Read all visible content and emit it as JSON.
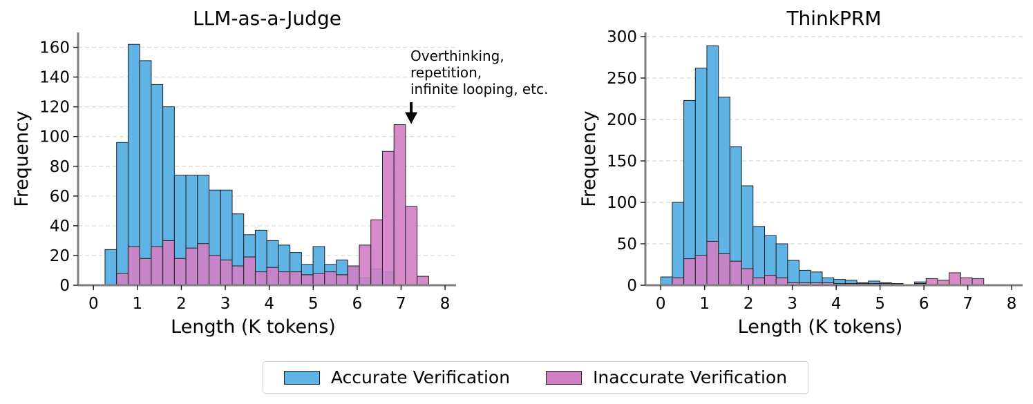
{
  "colors": {
    "accurate": "#5fb4e5",
    "inaccurate": "#d17fc4"
  },
  "legend": {
    "accurate_label": "Accurate Verification",
    "inaccurate_label": "Inaccurate Verification"
  },
  "chart_data": [
    {
      "type": "histogram",
      "title": "LLM-as-a-Judge",
      "xlabel": "Length (K tokens)",
      "ylabel": "Frequency",
      "xlim": [
        -0.35,
        8.25
      ],
      "ylim": [
        0,
        170
      ],
      "xticks": [
        0,
        1,
        2,
        3,
        4,
        5,
        6,
        7,
        8
      ],
      "yticks": [
        0,
        20,
        40,
        60,
        80,
        100,
        120,
        140,
        160
      ],
      "bin_width": 0.263,
      "bin_starts": [
        0.263,
        0.526,
        0.789,
        1.052,
        1.315,
        1.578,
        1.841,
        2.104,
        2.367,
        2.63,
        2.893,
        3.156,
        3.419,
        3.682,
        3.945,
        4.208,
        4.471,
        4.734,
        4.997,
        5.26,
        5.523,
        5.786,
        6.049,
        6.312,
        6.575,
        6.838,
        7.101,
        7.364,
        7.627
      ],
      "grid": "y-dashed",
      "series": [
        {
          "name": "Accurate Verification",
          "values": [
            24,
            96,
            162,
            151,
            135,
            120,
            74,
            74,
            74,
            64,
            64,
            48,
            34,
            37,
            30,
            27,
            22,
            14,
            26,
            14,
            17,
            13,
            5,
            11,
            9,
            0,
            0,
            0,
            0
          ]
        },
        {
          "name": "Inaccurate Verification",
          "values": [
            0,
            8,
            26,
            18,
            26,
            30,
            18,
            25,
            28,
            20,
            17,
            13,
            19,
            9,
            12,
            9,
            9,
            7,
            8,
            9,
            7,
            13,
            27,
            44,
            90,
            108,
            53,
            6,
            0
          ]
        }
      ],
      "annotation": {
        "lines": [
          "Overthinking,",
          "repetition,",
          "infinite looping, etc."
        ],
        "x": 7.23,
        "y": 108
      }
    },
    {
      "type": "histogram",
      "title": "ThinkPRM",
      "xlabel": "Length (K tokens)",
      "ylabel": "Frequency",
      "xlim": [
        -0.35,
        8.25
      ],
      "ylim": [
        0,
        305
      ],
      "xticks": [
        0,
        1,
        2,
        3,
        4,
        5,
        6,
        7,
        8
      ],
      "yticks": [
        0,
        50,
        100,
        150,
        200,
        250,
        300
      ],
      "bin_width": 0.263,
      "bin_starts": [
        0.0,
        0.263,
        0.526,
        0.789,
        1.052,
        1.315,
        1.578,
        1.841,
        2.104,
        2.367,
        2.63,
        2.893,
        3.156,
        3.419,
        3.682,
        3.945,
        4.208,
        4.471,
        4.734,
        4.997,
        5.26,
        5.523,
        5.786,
        6.049,
        6.312,
        6.575,
        6.838,
        7.101,
        7.364
      ],
      "grid": "y-dashed",
      "series": [
        {
          "name": "Accurate Verification",
          "values": [
            10,
            100,
            223,
            262,
            289,
            227,
            167,
            120,
            71,
            60,
            50,
            30,
            18,
            16,
            9,
            7,
            6,
            3,
            5,
            3,
            2,
            0,
            4,
            0,
            0,
            0,
            0,
            0,
            0
          ]
        },
        {
          "name": "Inaccurate Verification",
          "values": [
            0,
            9,
            32,
            36,
            53,
            38,
            29,
            20,
            9,
            12,
            9,
            3,
            3,
            3,
            3,
            2,
            2,
            2,
            2,
            2,
            1,
            0,
            2,
            8,
            6,
            15,
            9,
            8,
            0
          ]
        }
      ]
    }
  ]
}
